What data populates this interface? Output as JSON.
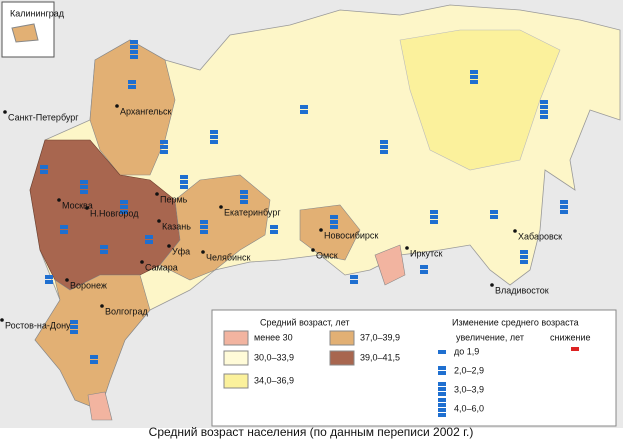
{
  "caption": "Средний возраст населения (по данным переписи 2002 г.)",
  "inset_label": "Калининград",
  "cities": [
    "Санкт-Петербург",
    "Архангельск",
    "Москва",
    "Н.Новгород",
    "Пермь",
    "Екатеринбург",
    "Казань",
    "Уфа",
    "Челябинск",
    "Самара",
    "Воронеж",
    "Новосибирск",
    "Омск",
    "Иркутск",
    "Хабаровск",
    "Владивосток",
    "Ростов-на-Дону",
    "Волгоград"
  ],
  "legend_age": {
    "title": "Средний возраст, лет",
    "items": [
      {
        "label": "менее 30",
        "color": "#f2b4a0"
      },
      {
        "label": "30,0–33,9",
        "color": "#fffbd8"
      },
      {
        "label": "34,0–36,9",
        "color": "#fbf19c"
      },
      {
        "label": "37,0–39,9",
        "color": "#e2b074"
      },
      {
        "label": "39,0–41,5",
        "color": "#a8664f"
      }
    ]
  },
  "legend_change": {
    "title": "Изменение среднего возраста",
    "increase_label": "увеличение, лет",
    "decrease_label": "снижение",
    "items": [
      "до 1,9",
      "2,0–2,9",
      "3,0–3,9",
      "4,0–6,0"
    ]
  }
}
